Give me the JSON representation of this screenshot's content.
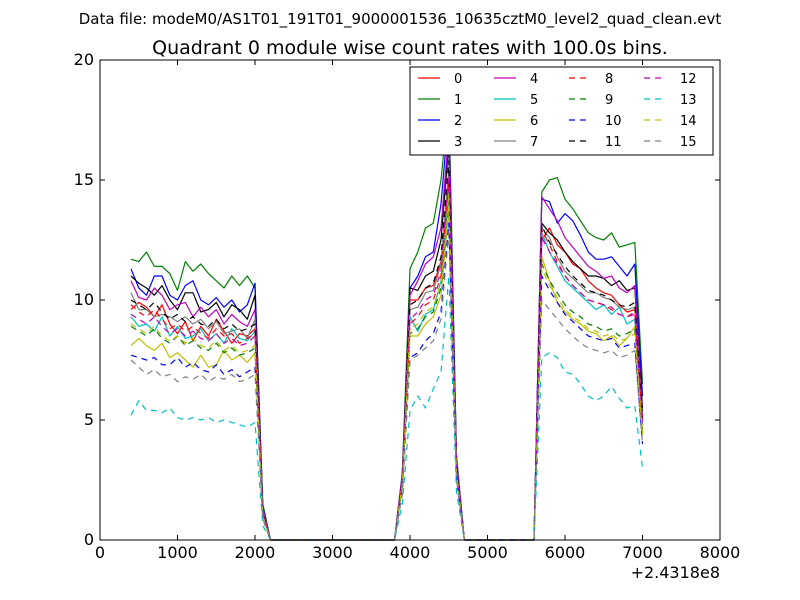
{
  "header": {
    "data_file": "Data file: modeM0/AS1T01_191T01_9000001536_10635cztM0_level2_quad_clean.evt"
  },
  "chart_data": {
    "type": "line",
    "title": "Quadrant 0 module wise count rates with 100.0s bins.",
    "xlabel": "",
    "ylabel": "",
    "x_offset_label": "+2.4318e8",
    "xlim": [
      0,
      8000
    ],
    "ylim": [
      0,
      20
    ],
    "x_ticks": [
      0,
      1000,
      2000,
      3000,
      4000,
      5000,
      6000,
      7000,
      8000
    ],
    "y_ticks": [
      0,
      5,
      10,
      15,
      20
    ],
    "grid": false,
    "legend_placement": "top-right",
    "legend_columns": 4,
    "x": [
      400,
      500,
      600,
      700,
      800,
      900,
      1000,
      1100,
      1200,
      1300,
      1400,
      1500,
      1600,
      1700,
      1800,
      1900,
      2000,
      2100,
      2200,
      2300,
      2400,
      2500,
      2600,
      2700,
      2800,
      2900,
      3000,
      3100,
      3200,
      3300,
      3400,
      3500,
      3600,
      3700,
      3800,
      3900,
      4000,
      4100,
      4200,
      4300,
      4400,
      4500,
      4600,
      4700,
      4800,
      4900,
      5000,
      5100,
      5200,
      5300,
      5400,
      5500,
      5600,
      5700,
      5800,
      5900,
      6000,
      6100,
      6200,
      6300,
      6400,
      6500,
      6600,
      6700,
      6800,
      6900,
      7000
    ],
    "series": [
      {
        "name": "0",
        "color": "#ff0000",
        "dash": "solid",
        "values": [
          9.6,
          9.9,
          9.7,
          9.3,
          9.8,
          9.0,
          8.6,
          9.1,
          8.3,
          8.9,
          8.5,
          9.2,
          8.7,
          8.2,
          8.6,
          8.5,
          8.8,
          1.2,
          0,
          0,
          0,
          0,
          0,
          0,
          0,
          0,
          0,
          0,
          0,
          0,
          0,
          0,
          0,
          0,
          0,
          2.5,
          10.0,
          10.0,
          10.5,
          10.6,
          11.6,
          15.0,
          3.0,
          0,
          0,
          0,
          0,
          0,
          0,
          0,
          0,
          0,
          0,
          12.5,
          13.0,
          12.3,
          12.0,
          11.5,
          11.3,
          10.8,
          10.5,
          10.3,
          10.2,
          9.8,
          9.5,
          9.6,
          5.0
        ]
      },
      {
        "name": "1",
        "color": "#008000",
        "dash": "solid",
        "values": [
          11.7,
          11.6,
          12.0,
          11.4,
          11.4,
          11.1,
          10.4,
          11.6,
          11.2,
          11.5,
          11.1,
          10.8,
          10.5,
          11.0,
          10.6,
          11.0,
          10.5,
          1.5,
          0,
          0,
          0,
          0,
          0,
          0,
          0,
          0,
          0,
          0,
          0,
          0,
          0,
          0,
          0,
          0,
          0,
          2.8,
          11.3,
          12.0,
          13.0,
          13.2,
          15.0,
          18.3,
          3.5,
          0,
          0,
          0,
          0,
          0,
          0,
          0,
          0,
          0,
          0,
          14.5,
          15.0,
          15.1,
          14.2,
          13.8,
          13.3,
          12.8,
          12.6,
          12.5,
          12.8,
          12.2,
          12.3,
          12.4,
          6.5
        ]
      },
      {
        "name": "2",
        "color": "#0000ff",
        "dash": "solid",
        "values": [
          11.3,
          10.5,
          10.2,
          11.0,
          11.0,
          10.2,
          10.0,
          10.6,
          10.8,
          10.0,
          9.8,
          10.1,
          9.7,
          10.0,
          9.5,
          9.8,
          10.7,
          1.4,
          0,
          0,
          0,
          0,
          0,
          0,
          0,
          0,
          0,
          0,
          0,
          0,
          0,
          0,
          0,
          0,
          0,
          2.7,
          10.5,
          11.0,
          11.8,
          12.0,
          14.0,
          17.8,
          3.4,
          0,
          0,
          0,
          0,
          0,
          0,
          0,
          0,
          0,
          0,
          14.2,
          14.1,
          13.2,
          13.6,
          13.3,
          12.7,
          12.0,
          11.7,
          11.7,
          11.8,
          11.4,
          11.0,
          11.5,
          6.0
        ]
      },
      {
        "name": "3",
        "color": "#000000",
        "dash": "solid",
        "values": [
          11.0,
          10.7,
          10.5,
          10.2,
          10.6,
          10.0,
          9.6,
          10.3,
          10.3,
          9.5,
          9.6,
          9.9,
          9.3,
          9.8,
          9.6,
          9.2,
          10.2,
          1.3,
          0,
          0,
          0,
          0,
          0,
          0,
          0,
          0,
          0,
          0,
          0,
          0,
          0,
          0,
          0,
          0,
          0,
          2.6,
          10.5,
          10.4,
          11.0,
          11.2,
          12.5,
          16.5,
          3.2,
          0,
          0,
          0,
          0,
          0,
          0,
          0,
          0,
          0,
          0,
          13.2,
          12.8,
          12.5,
          12.0,
          11.6,
          11.3,
          11.0,
          11.0,
          10.9,
          10.6,
          10.8,
          10.4,
          10.5,
          5.5
        ]
      },
      {
        "name": "4",
        "color": "#bf00bf",
        "dash": "solid",
        "values": [
          10.8,
          10.1,
          10.0,
          10.5,
          10.2,
          9.6,
          9.8,
          9.9,
          9.3,
          9.7,
          9.3,
          9.6,
          9.0,
          9.4,
          9.1,
          8.9,
          9.6,
          1.3,
          0,
          0,
          0,
          0,
          0,
          0,
          0,
          0,
          0,
          0,
          0,
          0,
          0,
          0,
          0,
          0,
          0,
          2.7,
          10.2,
          10.8,
          11.5,
          11.8,
          13.0,
          17.0,
          3.3,
          0,
          0,
          0,
          0,
          0,
          0,
          0,
          0,
          0,
          0,
          14.3,
          13.8,
          13.3,
          12.6,
          12.2,
          11.8,
          11.4,
          11.2,
          10.9,
          11.0,
          10.5,
          10.3,
          10.6,
          5.2
        ]
      },
      {
        "name": "5",
        "color": "#00bfbf",
        "dash": "solid",
        "values": [
          9.3,
          8.9,
          9.0,
          8.7,
          9.3,
          8.5,
          8.9,
          8.4,
          8.5,
          8.8,
          8.3,
          8.6,
          8.2,
          8.8,
          8.4,
          8.3,
          8.7,
          1.1,
          0,
          0,
          0,
          0,
          0,
          0,
          0,
          0,
          0,
          0,
          0,
          0,
          0,
          0,
          0,
          0,
          0,
          2.4,
          9.3,
          8.7,
          9.4,
          9.6,
          10.8,
          14.5,
          2.9,
          0,
          0,
          0,
          0,
          0,
          0,
          0,
          0,
          0,
          0,
          12.8,
          12.0,
          11.4,
          10.8,
          10.5,
          10.2,
          9.9,
          9.6,
          9.8,
          9.4,
          9.7,
          9.0,
          9.2,
          4.8
        ]
      },
      {
        "name": "6",
        "color": "#bfbf00",
        "dash": "solid",
        "values": [
          8.1,
          8.4,
          8.1,
          7.9,
          8.2,
          7.6,
          7.8,
          7.5,
          7.2,
          7.7,
          7.2,
          7.3,
          7.9,
          7.5,
          7.7,
          7.4,
          7.8,
          1.0,
          0,
          0,
          0,
          0,
          0,
          0,
          0,
          0,
          0,
          0,
          0,
          0,
          0,
          0,
          0,
          0,
          0,
          2.2,
          8.5,
          8.5,
          9.0,
          9.3,
          10.2,
          13.8,
          2.8,
          0,
          0,
          0,
          0,
          0,
          0,
          0,
          0,
          0,
          0,
          11.8,
          10.8,
          9.9,
          9.5,
          9.2,
          9.0,
          8.7,
          8.6,
          8.3,
          8.5,
          8.1,
          8.4,
          8.9,
          4.5
        ]
      },
      {
        "name": "7",
        "color": "#808080",
        "dash": "solid",
        "values": [
          10.3,
          9.6,
          9.6,
          9.3,
          9.4,
          9.3,
          9.1,
          9.3,
          9.0,
          9.2,
          8.8,
          9.1,
          8.6,
          8.7,
          8.8,
          8.4,
          9.2,
          1.2,
          0,
          0,
          0,
          0,
          0,
          0,
          0,
          0,
          0,
          0,
          0,
          0,
          0,
          0,
          0,
          0,
          0,
          2.5,
          9.6,
          9.7,
          10.3,
          10.4,
          11.5,
          15.5,
          3.0,
          0,
          0,
          0,
          0,
          0,
          0,
          0,
          0,
          0,
          0,
          13.0,
          12.6,
          11.8,
          11.2,
          10.9,
          10.6,
          10.3,
          10.3,
          10.1,
          10.0,
          9.7,
          9.6,
          9.7,
          5.0
        ]
      },
      {
        "name": "8",
        "color": "#ff0000",
        "dash": "dashed",
        "values": [
          9.8,
          9.5,
          9.3,
          9.6,
          9.2,
          8.8,
          9.0,
          8.7,
          8.9,
          8.6,
          8.4,
          8.8,
          8.5,
          8.6,
          8.2,
          8.4,
          8.6,
          1.1,
          0,
          0,
          0,
          0,
          0,
          0,
          0,
          0,
          0,
          0,
          0,
          0,
          0,
          0,
          0,
          0,
          0,
          2.3,
          9.0,
          9.3,
          9.8,
          10.0,
          11.0,
          14.8,
          2.9,
          0,
          0,
          0,
          0,
          0,
          0,
          0,
          0,
          0,
          0,
          12.9,
          12.3,
          11.6,
          11.0,
          10.6,
          10.3,
          10.0,
          9.9,
          9.8,
          9.6,
          9.4,
          9.3,
          9.5,
          4.9
        ]
      },
      {
        "name": "9",
        "color": "#008000",
        "dash": "dashed",
        "values": [
          8.9,
          8.7,
          8.5,
          8.8,
          8.4,
          8.2,
          8.5,
          8.1,
          8.3,
          8.0,
          7.9,
          8.2,
          7.8,
          8.0,
          7.7,
          7.8,
          8.0,
          1.0,
          0,
          0,
          0,
          0,
          0,
          0,
          0,
          0,
          0,
          0,
          0,
          0,
          0,
          0,
          0,
          0,
          0,
          2.2,
          8.6,
          8.8,
          9.3,
          9.5,
          10.5,
          14.2,
          2.8,
          0,
          0,
          0,
          0,
          0,
          0,
          0,
          0,
          0,
          0,
          11.5,
          10.8,
          10.3,
          9.8,
          9.5,
          9.3,
          9.0,
          8.9,
          8.7,
          8.8,
          8.5,
          8.6,
          8.8,
          4.6
        ]
      },
      {
        "name": "10",
        "color": "#0000ff",
        "dash": "dashed",
        "values": [
          7.7,
          7.6,
          7.5,
          7.6,
          7.3,
          7.3,
          7.6,
          7.2,
          7.4,
          7.1,
          7.0,
          7.3,
          6.9,
          7.1,
          6.8,
          7.0,
          7.2,
          0.9,
          0,
          0,
          0,
          0,
          0,
          0,
          0,
          0,
          0,
          0,
          0,
          0,
          0,
          0,
          0,
          0,
          0,
          2.0,
          7.6,
          7.8,
          8.3,
          8.6,
          9.5,
          13.2,
          2.6,
          0,
          0,
          0,
          0,
          0,
          0,
          0,
          0,
          0,
          0,
          11.0,
          10.4,
          9.9,
          9.4,
          9.1,
          8.8,
          8.5,
          8.4,
          8.3,
          8.4,
          8.0,
          8.1,
          8.2,
          4.0
        ]
      },
      {
        "name": "11",
        "color": "#000000",
        "dash": "dashed",
        "values": [
          10.0,
          9.8,
          9.6,
          9.9,
          9.5,
          9.2,
          9.4,
          9.1,
          9.3,
          9.0,
          8.9,
          9.2,
          8.8,
          9.0,
          8.7,
          8.8,
          9.0,
          1.2,
          0,
          0,
          0,
          0,
          0,
          0,
          0,
          0,
          0,
          0,
          0,
          0,
          0,
          0,
          0,
          0,
          0,
          2.5,
          9.8,
          10.0,
          10.5,
          10.7,
          11.8,
          15.8,
          3.1,
          0,
          0,
          0,
          0,
          0,
          0,
          0,
          0,
          0,
          0,
          13.1,
          12.4,
          11.9,
          11.4,
          11.0,
          10.7,
          10.4,
          10.3,
          10.2,
          10.0,
          9.8,
          9.7,
          9.9,
          5.1
        ]
      },
      {
        "name": "12",
        "color": "#bf00bf",
        "dash": "dashed",
        "values": [
          9.4,
          9.2,
          9.0,
          9.3,
          8.9,
          8.6,
          8.8,
          8.5,
          8.7,
          8.4,
          8.3,
          8.6,
          8.2,
          8.4,
          8.1,
          8.2,
          8.5,
          1.1,
          0,
          0,
          0,
          0,
          0,
          0,
          0,
          0,
          0,
          0,
          0,
          0,
          0,
          0,
          0,
          0,
          0,
          2.4,
          9.2,
          9.5,
          10.0,
          10.2,
          11.2,
          15.2,
          3.0,
          0,
          0,
          0,
          0,
          0,
          0,
          0,
          0,
          0,
          0,
          12.6,
          12.0,
          11.5,
          11.0,
          10.6,
          10.3,
          10.0,
          9.9,
          9.8,
          9.7,
          9.4,
          9.3,
          9.4,
          4.8
        ]
      },
      {
        "name": "13",
        "color": "#00bfbf",
        "dash": "dashed",
        "values": [
          5.2,
          5.8,
          5.4,
          5.4,
          5.3,
          5.5,
          5.1,
          5.0,
          5.1,
          5.0,
          5.1,
          4.9,
          5.0,
          4.9,
          4.8,
          4.7,
          4.9,
          0.6,
          0,
          0,
          0,
          0,
          0,
          0,
          0,
          0,
          0,
          0,
          0,
          0,
          0,
          0,
          0,
          0,
          0,
          1.5,
          5.4,
          6.0,
          5.5,
          6.3,
          7.0,
          11.0,
          2.0,
          0,
          0,
          0,
          0,
          0,
          0,
          0,
          0,
          0,
          0,
          7.6,
          7.8,
          7.6,
          7.0,
          6.9,
          6.5,
          6.0,
          5.8,
          6.0,
          6.4,
          5.9,
          5.5,
          5.6,
          3.0
        ]
      },
      {
        "name": "14",
        "color": "#bfbf00",
        "dash": "dashed",
        "values": [
          9.0,
          8.8,
          8.6,
          8.9,
          8.5,
          8.3,
          8.5,
          8.2,
          8.4,
          8.1,
          8.0,
          8.3,
          7.9,
          8.1,
          7.8,
          7.9,
          8.1,
          1.0,
          0,
          0,
          0,
          0,
          0,
          0,
          0,
          0,
          0,
          0,
          0,
          0,
          0,
          0,
          0,
          0,
          0,
          2.3,
          8.8,
          9.0,
          9.5,
          9.7,
          10.7,
          14.4,
          2.8,
          0,
          0,
          0,
          0,
          0,
          0,
          0,
          0,
          0,
          0,
          11.3,
          10.6,
          10.1,
          9.6,
          9.3,
          9.1,
          8.8,
          8.7,
          8.5,
          8.6,
          8.3,
          8.4,
          8.6,
          4.4
        ]
      },
      {
        "name": "15",
        "color": "#808080",
        "dash": "dashed",
        "values": [
          7.5,
          7.2,
          6.9,
          7.1,
          6.8,
          6.9,
          6.6,
          6.8,
          6.7,
          6.9,
          6.6,
          6.8,
          6.7,
          6.9,
          6.6,
          6.7,
          6.9,
          0.9,
          0,
          0,
          0,
          0,
          0,
          0,
          0,
          0,
          0,
          0,
          0,
          0,
          0,
          0,
          0,
          0,
          0,
          1.9,
          7.5,
          7.7,
          8.0,
          8.3,
          9.2,
          12.8,
          2.5,
          0,
          0,
          0,
          0,
          0,
          0,
          0,
          0,
          0,
          0,
          10.0,
          9.6,
          9.2,
          8.8,
          8.5,
          8.2,
          8.0,
          7.9,
          7.8,
          7.9,
          7.6,
          7.7,
          7.9,
          4.0
        ]
      }
    ]
  }
}
